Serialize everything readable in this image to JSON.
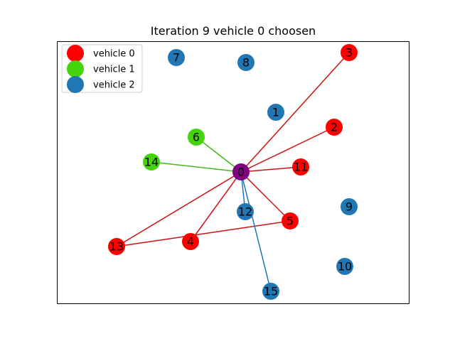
{
  "title": "Iteration 9 vehicle 0 choosen",
  "colors": {
    "vehicle_0": "#ff0000",
    "vehicle_1": "#44d40c",
    "vehicle_2": "#1f77b4",
    "depot": "#800080",
    "edge_vehicle_0": "#cc1111",
    "edge_vehicle_1": "#44b81a",
    "edge_vehicle_2": "#1f77b4"
  },
  "legend": [
    {
      "label": "vehicle 0",
      "color_key": "vehicle_0"
    },
    {
      "label": "vehicle 1",
      "color_key": "vehicle_1"
    },
    {
      "label": "vehicle 2",
      "color_key": "vehicle_2"
    }
  ],
  "nodes": [
    {
      "id": "0",
      "group": "depot"
    },
    {
      "id": "1",
      "group": "vehicle_2"
    },
    {
      "id": "2",
      "group": "vehicle_0"
    },
    {
      "id": "3",
      "group": "vehicle_0"
    },
    {
      "id": "4",
      "group": "vehicle_0"
    },
    {
      "id": "5",
      "group": "vehicle_0"
    },
    {
      "id": "6",
      "group": "vehicle_1"
    },
    {
      "id": "7",
      "group": "vehicle_2"
    },
    {
      "id": "8",
      "group": "vehicle_2"
    },
    {
      "id": "9",
      "group": "vehicle_2"
    },
    {
      "id": "10",
      "group": "vehicle_2"
    },
    {
      "id": "11",
      "group": "vehicle_0"
    },
    {
      "id": "12",
      "group": "vehicle_2"
    },
    {
      "id": "13",
      "group": "vehicle_0"
    },
    {
      "id": "14",
      "group": "vehicle_1"
    },
    {
      "id": "15",
      "group": "vehicle_2"
    }
  ],
  "edges": [
    {
      "from": "0",
      "to": "3",
      "group": "edge_vehicle_0"
    },
    {
      "from": "0",
      "to": "2",
      "group": "edge_vehicle_0"
    },
    {
      "from": "0",
      "to": "11",
      "group": "edge_vehicle_0"
    },
    {
      "from": "0",
      "to": "5",
      "group": "edge_vehicle_0"
    },
    {
      "from": "0",
      "to": "4",
      "group": "edge_vehicle_0"
    },
    {
      "from": "0",
      "to": "13",
      "group": "edge_vehicle_0"
    },
    {
      "from": "13",
      "to": "5",
      "group": "edge_vehicle_0"
    },
    {
      "from": "0",
      "to": "6",
      "group": "edge_vehicle_1"
    },
    {
      "from": "0",
      "to": "14",
      "group": "edge_vehicle_1"
    },
    {
      "from": "0",
      "to": "12",
      "group": "edge_vehicle_2"
    },
    {
      "from": "0",
      "to": "15",
      "group": "edge_vehicle_2"
    }
  ]
}
